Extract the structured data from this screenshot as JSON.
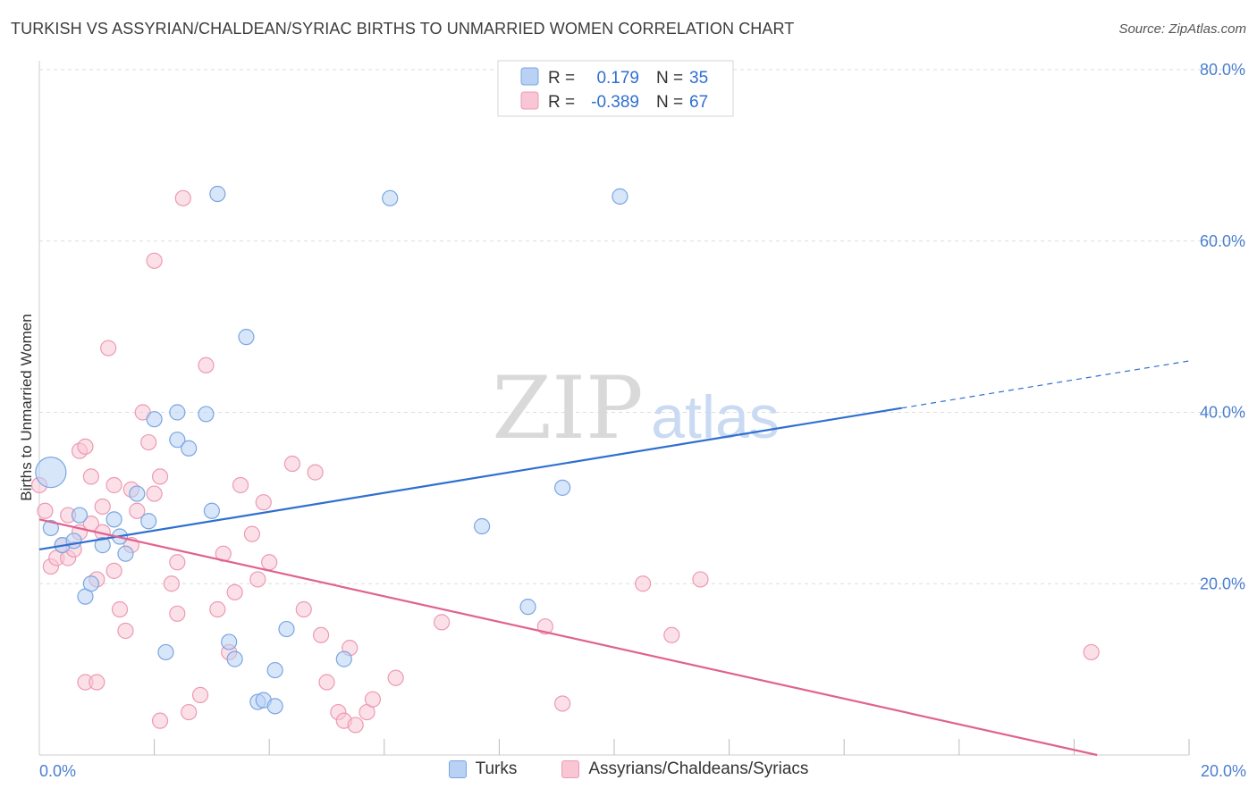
{
  "title": "TURKISH VS ASSYRIAN/CHALDEAN/SYRIAC BIRTHS TO UNMARRIED WOMEN CORRELATION CHART",
  "source": "Source: ZipAtlas.com",
  "watermark": {
    "zip": "ZIP",
    "atlas": "atlas"
  },
  "colors": {
    "turks_fill": "#b8d1f5",
    "turks_stroke": "#7aa6e0",
    "turks_line": "#2f6fd0",
    "assyr_fill": "#f9c6d6",
    "assyr_stroke": "#ec9ab4",
    "assyr_line": "#e0628f",
    "axis_label": "#4a7fd0",
    "grid": "#dddddd"
  },
  "legend_top": {
    "rows": [
      {
        "r_label": "R =",
        "r_value": "0.179",
        "n_label": "N =",
        "n_value": "35"
      },
      {
        "r_label": "R =",
        "r_value": "-0.389",
        "n_label": "N =",
        "n_value": "67"
      }
    ]
  },
  "legend_bottom": {
    "turks": "Turks",
    "assyr": "Assyrians/Chaldeans/Syriacs"
  },
  "chart_data": {
    "type": "scatter",
    "ylabel": "Births to Unmarried Women",
    "xlim": [
      0,
      20
    ],
    "ylim": [
      0,
      80
    ],
    "x_tick_labels": [
      "0.0%",
      "20.0%"
    ],
    "y_ticks": [
      20,
      40,
      60,
      80
    ],
    "y_tick_labels": [
      "20.0%",
      "40.0%",
      "60.0%",
      "80.0%"
    ],
    "grid": true,
    "series": [
      {
        "name": "Turks",
        "points": [
          [
            0.2,
            33.0
          ],
          [
            0.2,
            26.5
          ],
          [
            0.4,
            24.5
          ],
          [
            0.7,
            28.0
          ],
          [
            0.8,
            18.5
          ],
          [
            0.9,
            20.0
          ],
          [
            1.1,
            24.5
          ],
          [
            1.3,
            27.5
          ],
          [
            1.4,
            25.5
          ],
          [
            1.5,
            23.5
          ],
          [
            1.7,
            30.5
          ],
          [
            1.9,
            27.3
          ],
          [
            2.0,
            39.2
          ],
          [
            2.4,
            40.0
          ],
          [
            2.4,
            36.8
          ],
          [
            2.6,
            35.8
          ],
          [
            2.9,
            39.8
          ],
          [
            3.0,
            28.5
          ],
          [
            3.1,
            65.5
          ],
          [
            3.3,
            13.2
          ],
          [
            3.4,
            11.2
          ],
          [
            3.6,
            48.8
          ],
          [
            3.8,
            6.2
          ],
          [
            3.9,
            6.4
          ],
          [
            4.1,
            9.9
          ],
          [
            4.1,
            5.7
          ],
          [
            4.3,
            14.7
          ],
          [
            2.2,
            12.0
          ],
          [
            5.3,
            11.2
          ],
          [
            6.1,
            65.0
          ],
          [
            7.7,
            26.7
          ],
          [
            8.5,
            17.3
          ],
          [
            9.1,
            31.2
          ],
          [
            10.1,
            65.2
          ],
          [
            0.6,
            25.0
          ]
        ]
      },
      {
        "name": "Assyrians/Chaldeans/Syriacs",
        "points": [
          [
            0.0,
            31.5
          ],
          [
            0.1,
            28.5
          ],
          [
            0.2,
            22.0
          ],
          [
            0.3,
            23.0
          ],
          [
            0.4,
            24.5
          ],
          [
            0.5,
            28.0
          ],
          [
            0.5,
            23.0
          ],
          [
            0.6,
            24.0
          ],
          [
            0.7,
            35.5
          ],
          [
            0.7,
            26.0
          ],
          [
            0.8,
            36.0
          ],
          [
            0.8,
            8.5
          ],
          [
            0.9,
            27.0
          ],
          [
            0.9,
            32.5
          ],
          [
            1.0,
            20.5
          ],
          [
            1.0,
            8.5
          ],
          [
            1.1,
            29.0
          ],
          [
            1.2,
            47.5
          ],
          [
            1.3,
            31.5
          ],
          [
            1.3,
            21.5
          ],
          [
            1.4,
            17.0
          ],
          [
            1.5,
            14.5
          ],
          [
            1.6,
            24.5
          ],
          [
            1.6,
            31.0
          ],
          [
            1.7,
            28.5
          ],
          [
            1.8,
            40.0
          ],
          [
            1.9,
            36.5
          ],
          [
            2.0,
            57.7
          ],
          [
            2.0,
            30.5
          ],
          [
            2.1,
            32.5
          ],
          [
            2.1,
            4.0
          ],
          [
            2.3,
            20.0
          ],
          [
            2.4,
            16.5
          ],
          [
            2.4,
            22.5
          ],
          [
            2.5,
            65.0
          ],
          [
            2.6,
            5.0
          ],
          [
            2.8,
            7.0
          ],
          [
            2.9,
            45.5
          ],
          [
            3.1,
            17.0
          ],
          [
            3.2,
            23.5
          ],
          [
            3.3,
            12.0
          ],
          [
            3.4,
            19.0
          ],
          [
            3.5,
            31.5
          ],
          [
            3.7,
            25.8
          ],
          [
            3.8,
            20.5
          ],
          [
            3.9,
            29.5
          ],
          [
            4.0,
            22.5
          ],
          [
            4.4,
            34.0
          ],
          [
            4.6,
            17.0
          ],
          [
            4.8,
            33.0
          ],
          [
            4.9,
            14.0
          ],
          [
            5.0,
            8.5
          ],
          [
            5.2,
            5.0
          ],
          [
            5.3,
            4.0
          ],
          [
            5.4,
            12.5
          ],
          [
            5.5,
            3.5
          ],
          [
            5.7,
            5.0
          ],
          [
            5.8,
            6.5
          ],
          [
            6.2,
            9.0
          ],
          [
            7.0,
            15.5
          ],
          [
            8.8,
            15.0
          ],
          [
            9.1,
            6.0
          ],
          [
            10.5,
            20.0
          ],
          [
            11.0,
            14.0
          ],
          [
            11.5,
            20.5
          ],
          [
            18.3,
            12.0
          ],
          [
            1.1,
            26.0
          ]
        ]
      }
    ],
    "trend_lines": [
      {
        "series": "Turks",
        "solid": [
          [
            0,
            24.0
          ],
          [
            15.0,
            40.5
          ]
        ],
        "dashed": [
          [
            15.0,
            40.5
          ],
          [
            20.0,
            46.0
          ]
        ]
      },
      {
        "series": "Assyrians/Chaldeans/Syriacs",
        "solid": [
          [
            0,
            27.5
          ],
          [
            18.4,
            0
          ]
        ]
      }
    ]
  }
}
